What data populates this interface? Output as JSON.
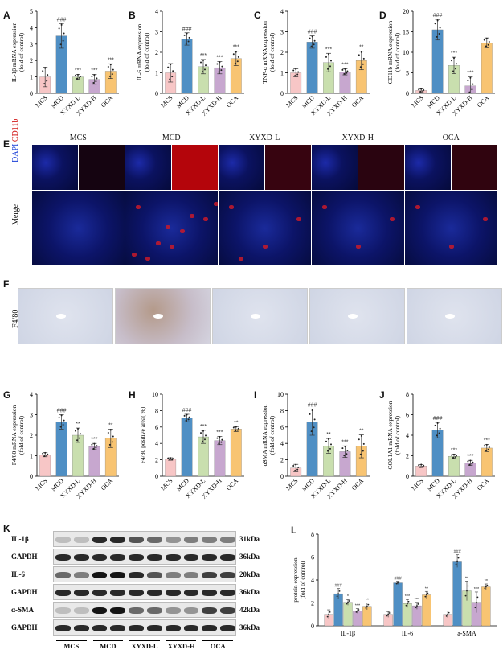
{
  "groups": [
    "MCS",
    "MCD",
    "XYXD-L",
    "XYXD-H",
    "OCA"
  ],
  "colors": {
    "MCS": "#f7c6c6",
    "MCD": "#4f8fc4",
    "XYXD-L": "#c9dfae",
    "XYXD-H": "#c7a7cf",
    "OCA": "#f8c472"
  },
  "panels": {
    "A": "A",
    "B": "B",
    "C": "C",
    "D": "D",
    "E": "E",
    "F": "F",
    "G": "G",
    "H": "H",
    "I": "I",
    "J": "J",
    "K": "K",
    "L": "L"
  },
  "chart_data": [
    {
      "id": "A",
      "type": "bar",
      "categories": [
        "MCS",
        "MCD",
        "XYXD-L",
        "XYXD-H",
        "OCA"
      ],
      "values": [
        1.0,
        3.5,
        1.0,
        0.85,
        1.35
      ],
      "errors": [
        0.6,
        0.75,
        0.15,
        0.3,
        0.45
      ],
      "ylabel": "IL-1β mRNA expression\n(fold of control)",
      "ylim": [
        0,
        5
      ],
      "ticks": [
        0,
        1,
        2,
        3,
        4,
        5
      ],
      "marks": [
        "",
        "###",
        "***",
        "***",
        "***"
      ]
    },
    {
      "id": "B",
      "type": "bar",
      "categories": [
        "MCS",
        "MCD",
        "XYXD-L",
        "XYXD-H",
        "OCA"
      ],
      "values": [
        1.0,
        2.65,
        1.3,
        1.25,
        1.7
      ],
      "errors": [
        0.45,
        0.3,
        0.35,
        0.3,
        0.35
      ],
      "ylabel": "IL-6 mRNA expression\n(fold of control)",
      "ylim": [
        0,
        4
      ],
      "ticks": [
        0,
        1,
        2,
        3,
        4
      ],
      "marks": [
        "",
        "###",
        "***",
        "***",
        "***"
      ]
    },
    {
      "id": "C",
      "type": "bar",
      "categories": [
        "MCS",
        "MCD",
        "XYXD-L",
        "XYXD-H",
        "OCA"
      ],
      "values": [
        1.0,
        2.5,
        1.5,
        1.05,
        1.6
      ],
      "errors": [
        0.2,
        0.3,
        0.45,
        0.15,
        0.45
      ],
      "ylabel": "TNF-α mRNA expression\n(fold of control)",
      "ylim": [
        0,
        4
      ],
      "ticks": [
        0,
        1,
        2,
        3,
        4
      ],
      "marks": [
        "",
        "###",
        "***",
        "***",
        "**"
      ]
    },
    {
      "id": "D",
      "type": "bar",
      "categories": [
        "MCS",
        "MCD",
        "XYXD-L",
        "XYXD-H",
        "OCA"
      ],
      "values": [
        0.7,
        15.5,
        6.8,
        1.8,
        12.3
      ],
      "errors": [
        0.4,
        2.5,
        2.0,
        2.2,
        1.2
      ],
      "ylabel": "CD11b mRNA expression\n(fold of control)",
      "ylim": [
        0,
        20
      ],
      "ticks": [
        0,
        5,
        10,
        15,
        20
      ],
      "marks": [
        "",
        "###",
        "***",
        "***",
        ""
      ]
    },
    {
      "id": "G",
      "type": "bar",
      "categories": [
        "MCS",
        "MCD",
        "XYXD-L",
        "XYXD-H",
        "OCA"
      ],
      "values": [
        1.05,
        2.65,
        2.0,
        1.45,
        1.85
      ],
      "errors": [
        0.1,
        0.35,
        0.35,
        0.15,
        0.45
      ],
      "ylabel": "F4/80 mRNA expression\n(fold of control)",
      "ylim": [
        0,
        4
      ],
      "ticks": [
        0,
        1,
        2,
        3,
        4
      ],
      "marks": [
        "",
        "###",
        "**",
        "***",
        "**"
      ]
    },
    {
      "id": "H",
      "type": "bar",
      "categories": [
        "MCS",
        "MCD",
        "XYXD-L",
        "XYXD-H",
        "OCA"
      ],
      "values": [
        2.1,
        7.1,
        4.8,
        4.35,
        5.75
      ],
      "errors": [
        0.15,
        0.45,
        0.8,
        0.5,
        0.3
      ],
      "ylabel": "F4/80 positive area( %)",
      "ylim": [
        0,
        10
      ],
      "ticks": [
        0,
        2,
        4,
        6,
        8,
        10
      ],
      "marks": [
        "",
        "###",
        "***",
        "***",
        "**"
      ]
    },
    {
      "id": "I",
      "type": "bar",
      "categories": [
        "MCS",
        "MCD",
        "XYXD-L",
        "XYXD-H",
        "OCA"
      ],
      "values": [
        1.0,
        6.6,
        3.7,
        3.0,
        3.65
      ],
      "errors": [
        0.45,
        1.6,
        0.9,
        0.7,
        1.4
      ],
      "ylabel": "αSMA mRNA expression\n(fold of control)",
      "ylim": [
        0,
        10
      ],
      "ticks": [
        0,
        2,
        4,
        6,
        8,
        10
      ],
      "marks": [
        "",
        "###",
        "**",
        "***",
        "**"
      ]
    },
    {
      "id": "J",
      "type": "bar",
      "categories": [
        "MCS",
        "MCD",
        "XYXD-L",
        "XYXD-H",
        "OCA"
      ],
      "values": [
        1.0,
        4.5,
        1.95,
        1.3,
        2.75
      ],
      "errors": [
        0.15,
        0.75,
        0.2,
        0.25,
        0.35
      ],
      "ylabel": "COL1A1 mRNA expression\n(fold of control)",
      "ylim": [
        0,
        8
      ],
      "ticks": [
        0,
        2,
        4,
        6,
        8
      ],
      "marks": [
        "",
        "###",
        "***",
        "***",
        "***"
      ]
    },
    {
      "id": "L",
      "type": "bar",
      "categories": [
        "IL-1β",
        "IL-6",
        "a-SMA"
      ],
      "series": [
        {
          "name": "MCS",
          "values": [
            1.0,
            1.0,
            1.0
          ],
          "errors": [
            0.4,
            0.25,
            0.3
          ],
          "marks": [
            "",
            "",
            ""
          ]
        },
        {
          "name": "MCD",
          "values": [
            2.8,
            3.75,
            5.65
          ],
          "errors": [
            0.45,
            0.15,
            0.55
          ],
          "marks": [
            "###",
            "###",
            "###"
          ]
        },
        {
          "name": "XYXD-L",
          "values": [
            2.05,
            1.95,
            3.05
          ],
          "errors": [
            0.25,
            0.35,
            0.85
          ],
          "marks": [
            "*",
            "***",
            "**"
          ]
        },
        {
          "name": "XYXD-H",
          "values": [
            1.3,
            1.75,
            2.05
          ],
          "errors": [
            0.2,
            0.3,
            0.9
          ],
          "marks": [
            "***",
            "***",
            "***"
          ]
        },
        {
          "name": "OCA",
          "values": [
            1.7,
            2.7,
            3.4
          ],
          "errors": [
            0.3,
            0.3,
            0.25
          ],
          "marks": [
            "**",
            "**",
            "**"
          ]
        }
      ],
      "ylabel": "protein expression\n(fold of control)",
      "ylim": [
        0,
        8
      ],
      "ticks": [
        0,
        2,
        4,
        6,
        8
      ]
    }
  ],
  "panel_e": {
    "headers": [
      "MCS",
      "MCD",
      "XYXD-L",
      "XYXD-H",
      "OCA"
    ],
    "label_dapi": "DAPI",
    "label_cd11b": "CD11b",
    "label_merge": "Merge"
  },
  "panel_f": {
    "label": "F4/80"
  },
  "panel_k": {
    "rows": [
      {
        "label": "IL-1β",
        "kda": "31kDa"
      },
      {
        "label": "GAPDH",
        "kda": "36kDa"
      },
      {
        "label": "IL-6",
        "kda": "20kDa"
      },
      {
        "label": "GAPDH",
        "kda": "36kDa"
      },
      {
        "label": "α-SMA",
        "kda": "42kDa"
      },
      {
        "label": "GAPDH",
        "kda": "36kDa"
      }
    ],
    "groups": [
      "MCS",
      "MCD",
      "XYXD-L",
      "XYXD-H",
      "OCA"
    ]
  }
}
